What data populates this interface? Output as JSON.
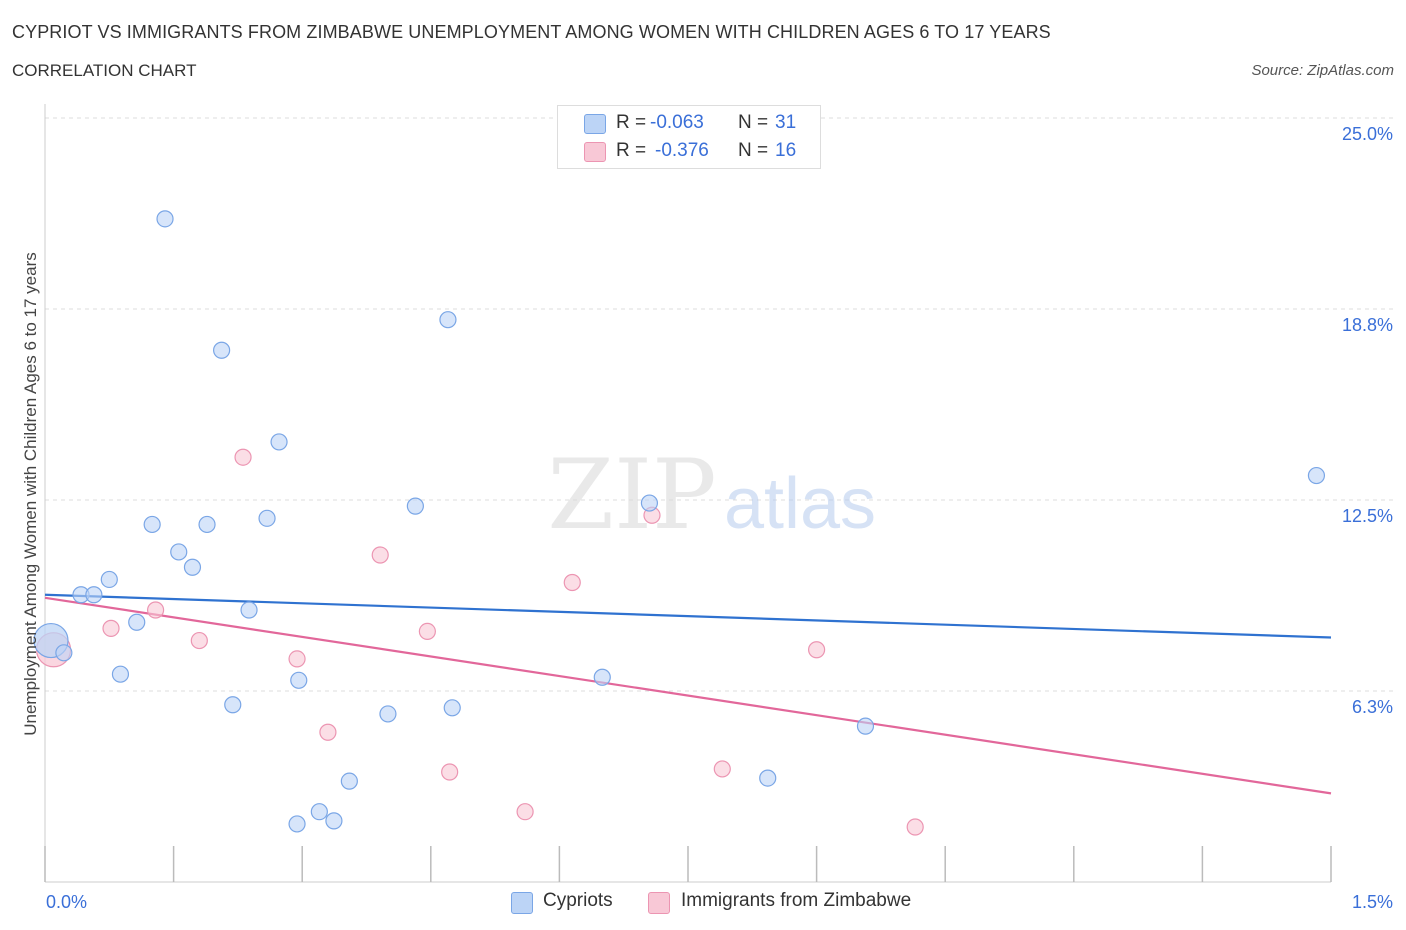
{
  "header": {
    "title": "CYPRIOT VS IMMIGRANTS FROM ZIMBABWE UNEMPLOYMENT AMONG WOMEN WITH CHILDREN AGES 6 TO 17 YEARS",
    "subtitle": "CORRELATION CHART",
    "source": "Source: ZipAtlas.com"
  },
  "watermark": {
    "zip": "ZIP",
    "atlas": "atlas"
  },
  "colors": {
    "blue_fill": "#bcd4f6",
    "blue_stroke": "#7aa6e6",
    "blue_line": "#2f72d0",
    "pink_fill": "#f8c8d6",
    "pink_stroke": "#ec95b2",
    "pink_line": "#e2679a",
    "value_text": "#3a6fd8",
    "grid": "#dddddd"
  },
  "legend_stats": [
    {
      "r_label": "R =",
      "r_value": "-0.063",
      "n_label": "N =",
      "n_value": "31"
    },
    {
      "r_label": "R =",
      "r_value": "-0.376",
      "n_label": "N =",
      "n_value": "16"
    }
  ],
  "chart_data": {
    "type": "scatter",
    "title": "CYPRIOT VS IMMIGRANTS FROM ZIMBABWE UNEMPLOYMENT AMONG WOMEN WITH CHILDREN AGES 6 TO 17 YEARS",
    "xlabel": "",
    "ylabel": "Unemployment Among Women with Children Ages 6 to 17 years",
    "xlim": [
      0,
      1.5
    ],
    "ylim": [
      0,
      25
    ],
    "x_tick_labels": [
      "0.0%",
      "1.5%"
    ],
    "y_ticks": [
      {
        "value": 6.25,
        "label": "6.3%"
      },
      {
        "value": 12.5,
        "label": "12.5%"
      },
      {
        "value": 18.75,
        "label": "18.8%"
      },
      {
        "value": 25,
        "label": "25.0%"
      }
    ],
    "grid": true,
    "legend_position": "bottom",
    "series": [
      {
        "name": "Cypriots",
        "color": "#7aa6e6",
        "points": [
          {
            "x": 0.007,
            "y": 7.9,
            "big": true
          },
          {
            "x": 0.022,
            "y": 7.5
          },
          {
            "x": 0.042,
            "y": 9.4
          },
          {
            "x": 0.057,
            "y": 9.4
          },
          {
            "x": 0.075,
            "y": 9.9
          },
          {
            "x": 0.088,
            "y": 6.8
          },
          {
            "x": 0.107,
            "y": 8.5
          },
          {
            "x": 0.125,
            "y": 11.7
          },
          {
            "x": 0.14,
            "y": 21.7
          },
          {
            "x": 0.156,
            "y": 10.8
          },
          {
            "x": 0.172,
            "y": 10.3
          },
          {
            "x": 0.189,
            "y": 11.7
          },
          {
            "x": 0.206,
            "y": 17.4
          },
          {
            "x": 0.219,
            "y": 5.8
          },
          {
            "x": 0.238,
            "y": 8.9
          },
          {
            "x": 0.259,
            "y": 11.9
          },
          {
            "x": 0.273,
            "y": 14.4
          },
          {
            "x": 0.294,
            "y": 1.9
          },
          {
            "x": 0.296,
            "y": 6.6
          },
          {
            "x": 0.32,
            "y": 2.3
          },
          {
            "x": 0.337,
            "y": 2.0
          },
          {
            "x": 0.355,
            "y": 3.3
          },
          {
            "x": 0.4,
            "y": 5.5
          },
          {
            "x": 0.432,
            "y": 12.3
          },
          {
            "x": 0.47,
            "y": 18.4
          },
          {
            "x": 0.475,
            "y": 5.7
          },
          {
            "x": 0.65,
            "y": 6.7
          },
          {
            "x": 0.705,
            "y": 12.4
          },
          {
            "x": 0.843,
            "y": 3.4
          },
          {
            "x": 0.957,
            "y": 5.1
          },
          {
            "x": 1.483,
            "y": 13.3
          }
        ],
        "trend": {
          "x": [
            0,
            1.5
          ],
          "y": [
            9.4,
            8.0
          ]
        }
      },
      {
        "name": "Immigrants from Zimbabwe",
        "color": "#ec95b2",
        "points": [
          {
            "x": 0.01,
            "y": 7.6,
            "big": true
          },
          {
            "x": 0.077,
            "y": 8.3
          },
          {
            "x": 0.129,
            "y": 8.9
          },
          {
            "x": 0.18,
            "y": 7.9
          },
          {
            "x": 0.231,
            "y": 13.9
          },
          {
            "x": 0.294,
            "y": 7.3
          },
          {
            "x": 0.33,
            "y": 4.9
          },
          {
            "x": 0.391,
            "y": 10.7
          },
          {
            "x": 0.446,
            "y": 8.2
          },
          {
            "x": 0.472,
            "y": 3.6
          },
          {
            "x": 0.56,
            "y": 2.3
          },
          {
            "x": 0.615,
            "y": 9.8
          },
          {
            "x": 0.708,
            "y": 12.0
          },
          {
            "x": 0.79,
            "y": 3.7
          },
          {
            "x": 0.9,
            "y": 7.6
          },
          {
            "x": 1.015,
            "y": 1.8
          }
        ],
        "trend": {
          "x": [
            0,
            1.5
          ],
          "y": [
            9.3,
            2.9
          ]
        }
      }
    ]
  }
}
